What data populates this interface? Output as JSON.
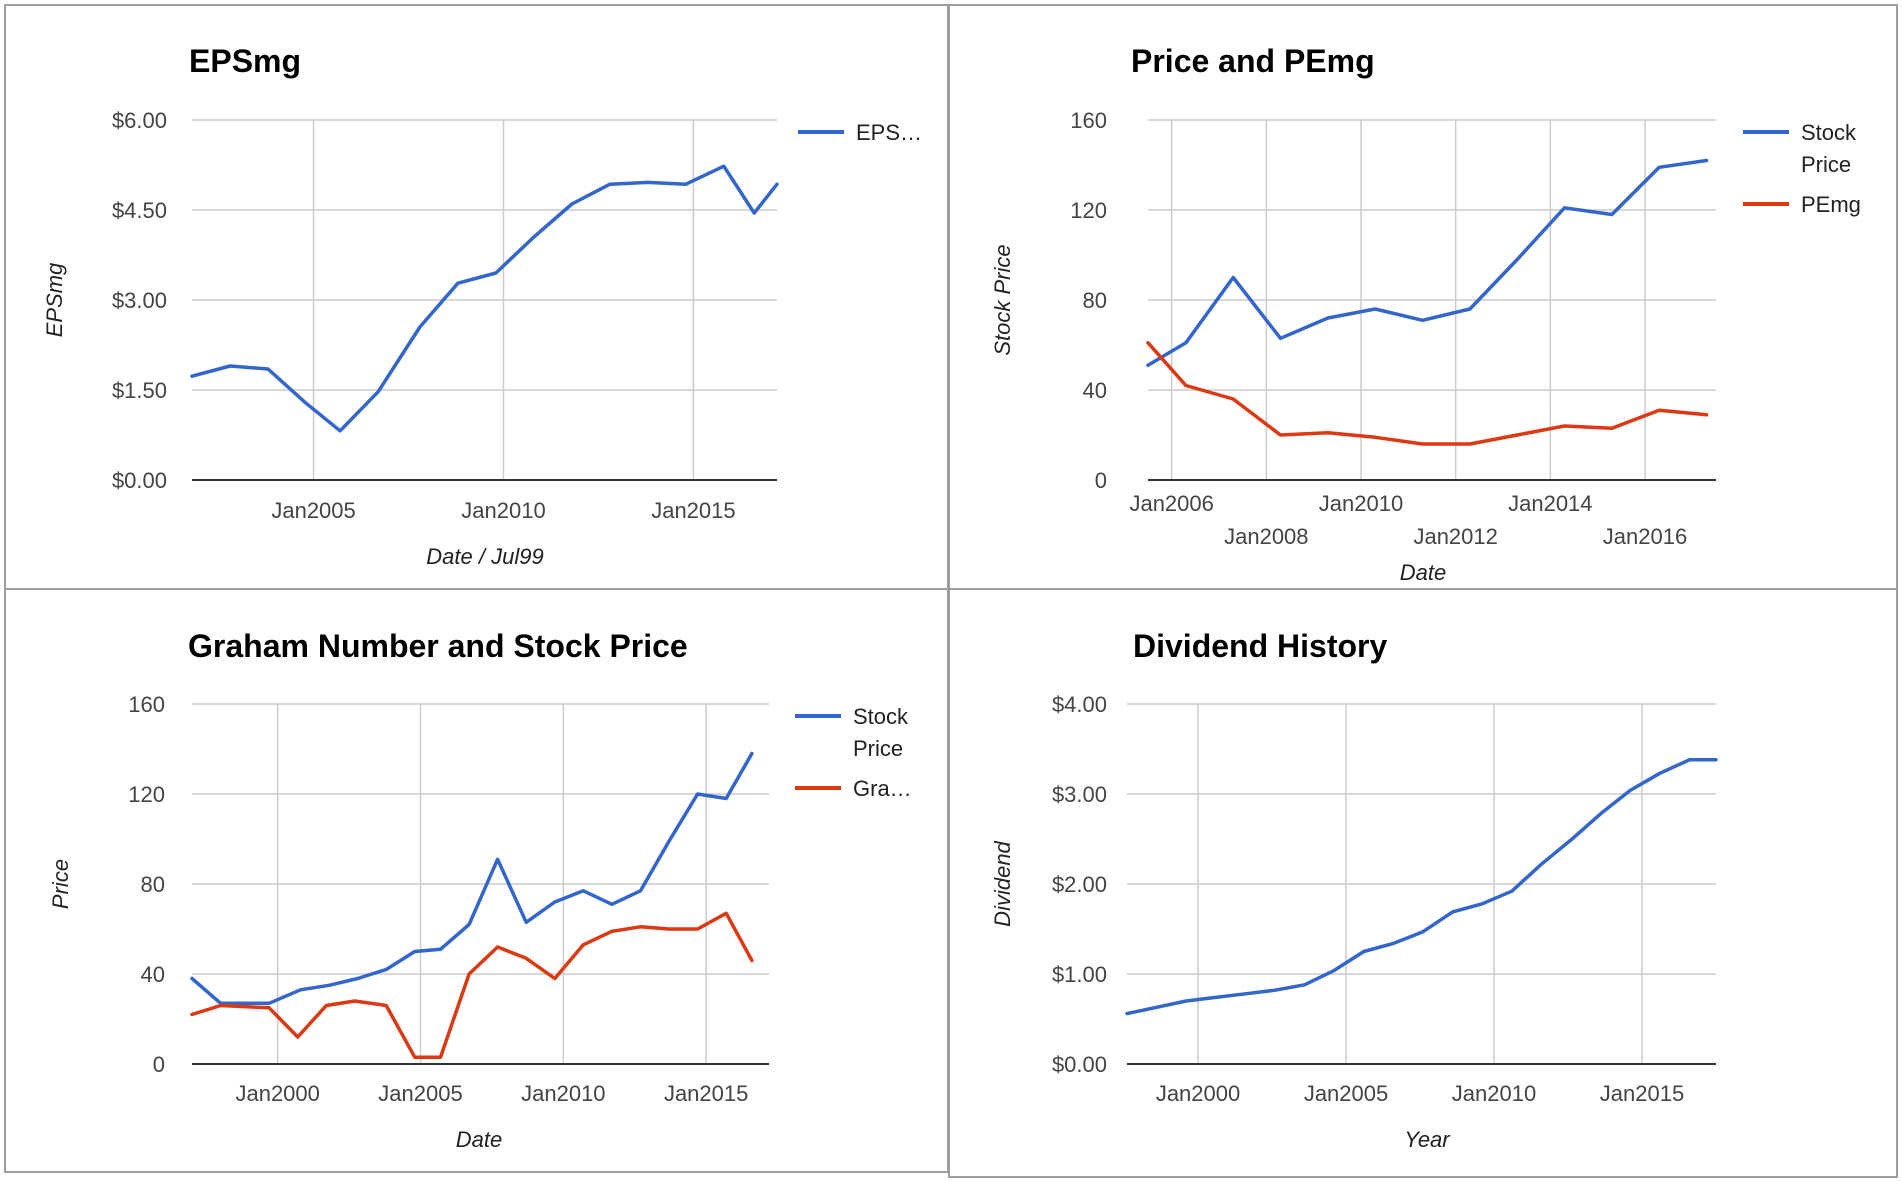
{
  "colors": {
    "blue": "#3366cc",
    "red": "#dc3912"
  },
  "chart_data": [
    {
      "type": "line",
      "title": "EPSmg",
      "xlabel": "Date / Jul99",
      "ylabel": "EPSmg",
      "x_domain": [
        2001.8,
        2017.2
      ],
      "ylim": [
        0,
        6
      ],
      "y_ticks": [
        0,
        1.5,
        3,
        4.5,
        6
      ],
      "y_tick_labels": [
        "$0.00",
        "$1.50",
        "$3.00",
        "$4.50",
        "$6.00"
      ],
      "x_ticks": [
        {
          "value": 2005,
          "label": "Jan2005"
        },
        {
          "value": 2010,
          "label": "Jan2010"
        },
        {
          "value": 2015,
          "label": "Jan2015"
        }
      ],
      "legend_position": "right",
      "series": [
        {
          "name": "EPS…",
          "color": "#3366cc",
          "x": [
            2001.8,
            2002.8,
            2003.8,
            2004.8,
            2005.7,
            2006.7,
            2007.8,
            2008.8,
            2009.8,
            2010.8,
            2011.8,
            2012.8,
            2013.8,
            2014.8,
            2015.8,
            2016.6,
            2017.2
          ],
          "y": [
            1.73,
            1.9,
            1.85,
            1.28,
            0.82,
            1.47,
            2.55,
            3.28,
            3.45,
            4.05,
            4.6,
            4.93,
            4.96,
            4.93,
            5.23,
            4.45,
            4.93
          ]
        }
      ]
    },
    {
      "type": "line",
      "title": "Price and PEmg",
      "xlabel": "Date",
      "ylabel": "Stock Price",
      "x_domain": [
        2005.5,
        2017.5
      ],
      "ylim": [
        0,
        160
      ],
      "y_ticks": [
        0,
        40,
        80,
        120,
        160
      ],
      "y_tick_labels": [
        "0",
        "40",
        "80",
        "120",
        "160"
      ],
      "x_ticks": [
        {
          "value": 2006,
          "label": "Jan2006",
          "row": 0
        },
        {
          "value": 2008,
          "label": "Jan2008",
          "row": 1
        },
        {
          "value": 2010,
          "label": "Jan2010",
          "row": 0
        },
        {
          "value": 2012,
          "label": "Jan2012",
          "row": 1
        },
        {
          "value": 2014,
          "label": "Jan2014",
          "row": 0
        },
        {
          "value": 2016,
          "label": "Jan2016",
          "row": 1
        }
      ],
      "legend_position": "right",
      "series": [
        {
          "name": "Stock Price",
          "color": "#3366cc",
          "x": [
            2005.5,
            2006.3,
            2007.3,
            2008.3,
            2009.3,
            2010.3,
            2011.3,
            2012.3,
            2013.3,
            2014.3,
            2015.3,
            2016.3,
            2017.3
          ],
          "y": [
            51,
            61,
            90,
            63,
            72,
            76,
            71,
            76,
            98,
            121,
            118,
            139,
            142
          ]
        },
        {
          "name": "PEmg",
          "color": "#dc3912",
          "x": [
            2005.5,
            2006.3,
            2007.3,
            2008.3,
            2009.3,
            2010.3,
            2011.3,
            2012.3,
            2013.3,
            2014.3,
            2015.3,
            2016.3,
            2017.3
          ],
          "y": [
            61,
            42,
            36,
            20,
            21,
            19,
            16,
            16,
            20,
            24,
            23,
            31,
            29
          ]
        }
      ]
    },
    {
      "type": "line",
      "title": "Graham Number and Stock Price",
      "xlabel": "Date",
      "ylabel": "Price",
      "x_domain": [
        1997.0,
        2017.2
      ],
      "ylim": [
        0,
        160
      ],
      "y_ticks": [
        0,
        40,
        80,
        120,
        160
      ],
      "y_tick_labels": [
        "0",
        "40",
        "80",
        "120",
        "160"
      ],
      "x_ticks": [
        {
          "value": 2000,
          "label": "Jan2000"
        },
        {
          "value": 2005,
          "label": "Jan2005"
        },
        {
          "value": 2010,
          "label": "Jan2010"
        },
        {
          "value": 2015,
          "label": "Jan2015"
        }
      ],
      "legend_position": "right",
      "series": [
        {
          "name": "Stock Price",
          "color": "#3366cc",
          "x": [
            1997.0,
            1998.0,
            1999.7,
            2000.8,
            2001.8,
            2002.8,
            2003.8,
            2004.8,
            2005.7,
            2006.7,
            2007.7,
            2008.7,
            2009.7,
            2010.7,
            2011.7,
            2012.7,
            2013.7,
            2014.7,
            2015.7,
            2016.6
          ],
          "y": [
            38,
            27,
            27,
            33,
            35,
            38,
            42,
            50,
            51,
            62,
            91,
            63,
            72,
            77,
            71,
            77,
            99,
            120,
            118,
            138
          ]
        },
        {
          "name": "Gra…",
          "color": "#dc3912",
          "x": [
            1997.0,
            1998.0,
            1999.7,
            2000.7,
            2001.7,
            2002.7,
            2003.8,
            2004.8,
            2005.7,
            2006.7,
            2007.7,
            2008.7,
            2009.7,
            2010.7,
            2011.7,
            2012.7,
            2013.7,
            2014.7,
            2015.7,
            2016.6
          ],
          "y": [
            22,
            26,
            25,
            12,
            26,
            28,
            26,
            3,
            3,
            40,
            52,
            47,
            38,
            53,
            59,
            61,
            60,
            60,
            67,
            46
          ]
        }
      ]
    },
    {
      "type": "line",
      "title": "Dividend History",
      "xlabel": "Year",
      "ylabel": "Dividend",
      "x_domain": [
        1997.6,
        2017.5
      ],
      "ylim": [
        0,
        4
      ],
      "y_ticks": [
        0,
        1,
        2,
        3,
        4
      ],
      "y_tick_labels": [
        "$0.00",
        "$1.00",
        "$2.00",
        "$3.00",
        "$4.00"
      ],
      "x_ticks": [
        {
          "value": 2000,
          "label": "Jan2000"
        },
        {
          "value": 2005,
          "label": "Jan2005"
        },
        {
          "value": 2010,
          "label": "Jan2010"
        },
        {
          "value": 2015,
          "label": "Jan2015"
        }
      ],
      "legend_position": "none",
      "series": [
        {
          "color": "#3366cc",
          "x": [
            1997.6,
            1998.6,
            1999.6,
            2000.6,
            2001.6,
            2002.6,
            2003.6,
            2004.6,
            2005.6,
            2006.6,
            2007.6,
            2008.6,
            2009.6,
            2010.6,
            2011.6,
            2012.6,
            2013.6,
            2014.6,
            2015.6,
            2016.6,
            2017.5
          ],
          "y": [
            0.56,
            0.63,
            0.7,
            0.74,
            0.78,
            0.82,
            0.88,
            1.04,
            1.25,
            1.34,
            1.47,
            1.69,
            1.78,
            1.92,
            2.22,
            2.49,
            2.78,
            3.04,
            3.23,
            3.38,
            3.38
          ]
        }
      ]
    }
  ]
}
